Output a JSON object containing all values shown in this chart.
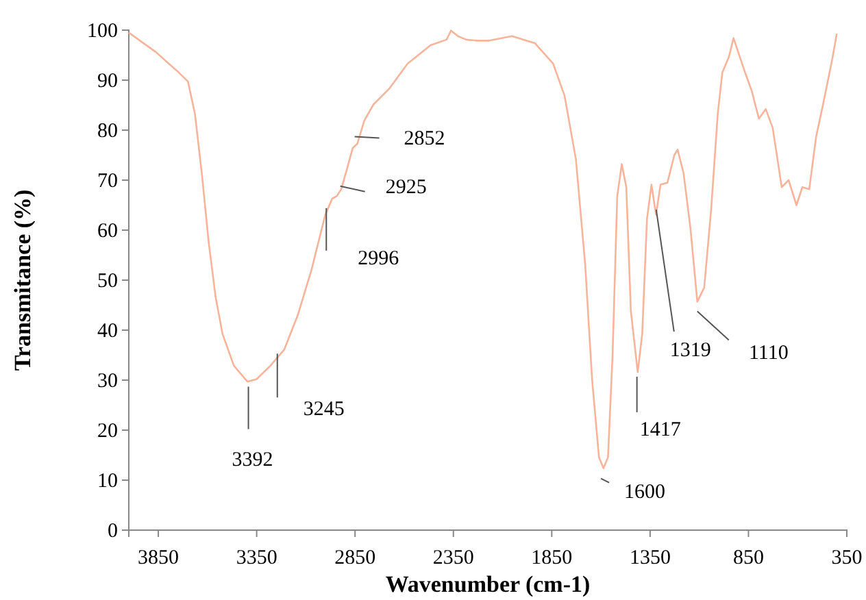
{
  "chart_data": {
    "type": "line",
    "xlabel": "Wavenumber (cm-1)",
    "ylabel": "Transmitance (%)",
    "xlim": [
      4000,
      350
    ],
    "xticks": [
      3850,
      3350,
      2850,
      2350,
      1850,
      1350,
      850,
      350
    ],
    "ylim": [
      0,
      100
    ],
    "yticks": [
      0,
      10,
      20,
      30,
      40,
      50,
      60,
      70,
      80,
      90,
      100
    ],
    "grid": false,
    "marker": "none",
    "line_style": "solid",
    "series": [
      {
        "color": "#f7b49a",
        "x": [
          4000,
          3862,
          3745,
          3699,
          3664,
          3629,
          3594,
          3559,
          3524,
          3466,
          3397,
          3350,
          3280,
          3210,
          3141,
          3071,
          3001,
          2966,
          2943,
          2920,
          2897,
          2862,
          2838,
          2803,
          2757,
          2676,
          2583,
          2466,
          2385,
          2362,
          2327,
          2285,
          2234,
          2169,
          2052,
          1936,
          1843,
          1785,
          1727,
          1680,
          1645,
          1610,
          1587,
          1564,
          1541,
          1517,
          1494,
          1471,
          1448,
          1413,
          1390,
          1366,
          1343,
          1320,
          1297,
          1262,
          1227,
          1210,
          1180,
          1145,
          1110,
          1075,
          1040,
          1006,
          983,
          949,
          926,
          890,
          867,
          833,
          797,
          762,
          727,
          681,
          646,
          606,
          576,
          541,
          506,
          471,
          424,
          401
        ],
        "values": [
          99.5,
          95.6,
          91.5,
          89.7,
          83.3,
          71.4,
          57.6,
          46.7,
          39.3,
          32.9,
          29.7,
          30.2,
          32.9,
          36.1,
          43,
          52.1,
          63.1,
          66.3,
          66.8,
          68.2,
          71.4,
          76.4,
          77.3,
          81.9,
          85.1,
          88.3,
          93.3,
          97,
          98.1,
          99.9,
          98.8,
          98.1,
          97.9,
          97.9,
          98.8,
          97.4,
          93.3,
          86.9,
          74.1,
          53.1,
          30.2,
          14.6,
          12.4,
          14.6,
          34.8,
          66.8,
          73.2,
          68.6,
          43.9,
          31.6,
          39.3,
          62.2,
          69.1,
          63.1,
          69.1,
          69.5,
          75,
          76.1,
          71.4,
          60.4,
          45.7,
          48.5,
          64,
          83.3,
          91.5,
          94.7,
          98.4,
          94.2,
          91.5,
          87.8,
          82.3,
          84.2,
          80.5,
          68.6,
          70,
          65,
          68.6,
          68.2,
          78.7,
          85.1,
          94.2,
          99.3
        ]
      }
    ],
    "annotations": [
      {
        "text": "3392",
        "x": 3392,
        "y": 28.7
      },
      {
        "text": "3245",
        "x": 3245,
        "y": 35.3
      },
      {
        "text": "2996",
        "x": 2996,
        "y": 64.4
      },
      {
        "text": "2925",
        "x": 2925,
        "y": 68.8
      },
      {
        "text": "2852",
        "x": 2852,
        "y": 78.7
      },
      {
        "text": "1600",
        "x": 1600,
        "y": 13.6
      },
      {
        "text": "1417",
        "x": 1417,
        "y": 30.7
      },
      {
        "text": "1319",
        "x": 1319,
        "y": 64.1
      },
      {
        "text": "1110",
        "x": 1110,
        "y": 45.7
      }
    ]
  }
}
